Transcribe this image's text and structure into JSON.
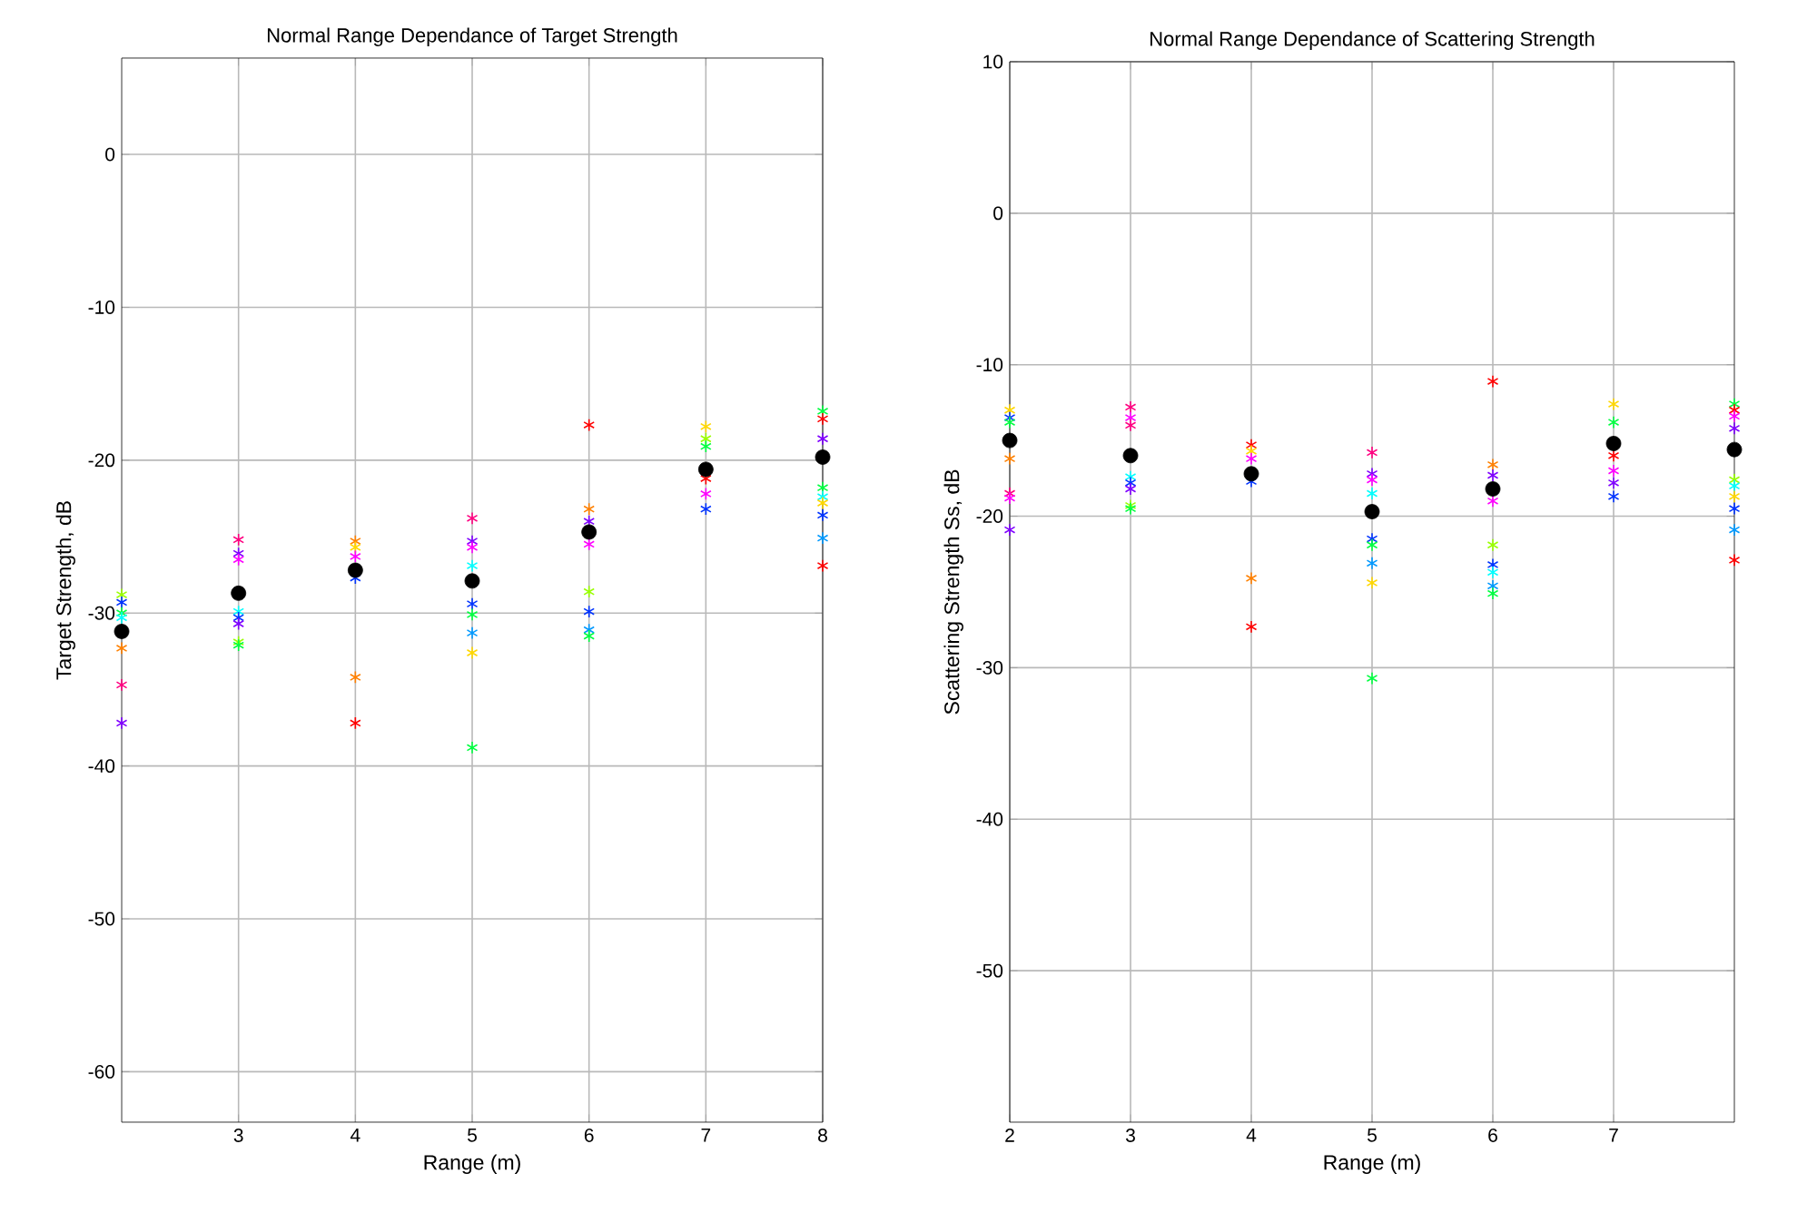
{
  "chart_data": [
    {
      "type": "scatter",
      "title": "Normal Range Dependance of Target Strength",
      "xlabel": "Range (m)",
      "ylabel": "Target Strength, dB",
      "xlim": [
        2,
        8
      ],
      "ylim": [
        -63.3,
        6.3
      ],
      "xticks": [
        3,
        4,
        5,
        6,
        7,
        8
      ],
      "yticks": [
        -60,
        -50,
        -40,
        -30,
        -20,
        -10,
        0
      ],
      "grid": true,
      "marker": "cross",
      "series": [
        {
          "x": [
            2,
            2,
            2,
            2,
            2,
            2,
            2,
            3,
            3,
            3,
            3,
            3,
            3,
            3,
            3,
            4,
            4,
            4,
            4,
            4,
            4,
            5,
            5,
            5,
            5,
            5,
            5,
            5,
            5,
            5,
            6,
            6,
            6,
            6,
            6,
            6,
            6,
            6,
            7,
            7,
            7,
            7,
            7,
            7,
            8,
            8,
            8,
            8,
            8,
            8,
            8,
            8,
            8
          ],
          "values": [
            -28.8,
            -29.3,
            -30.0,
            -30.3,
            -32.3,
            -34.7,
            -37.2,
            -25.2,
            -26.1,
            -26.5,
            -29.9,
            -30.3,
            -30.7,
            -31.9,
            -32.1,
            -25.3,
            -25.7,
            -26.3,
            -27.7,
            -34.2,
            -37.2,
            -23.8,
            -25.3,
            -25.7,
            -26.9,
            -29.4,
            -30.1,
            -31.3,
            -32.6,
            -38.8,
            -17.7,
            -23.2,
            -24.0,
            -25.5,
            -28.6,
            -29.9,
            -31.1,
            -31.5,
            -17.8,
            -18.6,
            -19.1,
            -21.2,
            -22.2,
            -23.2,
            -16.8,
            -17.3,
            -18.6,
            -21.8,
            -22.4,
            -22.8,
            -23.6,
            -25.1,
            -26.9
          ],
          "colors": [
            "#99ff00",
            "#0033ff",
            "#00ff40",
            "#00ffff",
            "#ff8000",
            "#ff0080",
            "#7f00ff",
            "#ff0080",
            "#7f00ff",
            "#ff00ff",
            "#00ffff",
            "#0033ff",
            "#7f00ff",
            "#99ff00",
            "#00ff40",
            "#ff8000",
            "#ffd700",
            "#ff00ff",
            "#0033ff",
            "#ff8000",
            "#ff0000",
            "#ff0080",
            "#7f00ff",
            "#ff00ff",
            "#00ffff",
            "#0033ff",
            "#00ff40",
            "#0099ff",
            "#ffd700",
            "#00ff40",
            "#ff0000",
            "#ff8000",
            "#7f00ff",
            "#ff00ff",
            "#99ff00",
            "#0033ff",
            "#0099ff",
            "#00ff40",
            "#ffd700",
            "#99ff00",
            "#00ff40",
            "#ff0000",
            "#ff00ff",
            "#0033ff",
            "#00ff40",
            "#ff0000",
            "#7f00ff",
            "#00ff40",
            "#00ffff",
            "#ffd700",
            "#0033ff",
            "#0099ff",
            "#ff0000"
          ]
        },
        {
          "x": [
            2,
            3,
            4,
            5,
            6,
            7,
            8
          ],
          "values": [
            -31.2,
            -28.7,
            -27.2,
            -27.9,
            -24.7,
            -20.6,
            -19.8
          ],
          "color": "#000000",
          "marker": "circle"
        }
      ]
    },
    {
      "type": "scatter",
      "title": "Normal Range Dependance of Scattering Strength",
      "xlabel": "Range (m)",
      "ylabel": "Scattering Strength Ss, dB",
      "xlim": [
        2,
        8
      ],
      "ylim": [
        -60,
        10
      ],
      "xticks": [
        2,
        3,
        4,
        5,
        6,
        7
      ],
      "yticks": [
        -50,
        -40,
        -30,
        -20,
        -10,
        0,
        10
      ],
      "grid": true,
      "marker": "cross",
      "series": [
        {
          "x": [
            2,
            2,
            2,
            2,
            2,
            2,
            2,
            3,
            3,
            3,
            3,
            3,
            3,
            3,
            3,
            4,
            4,
            4,
            4,
            4,
            4,
            5,
            5,
            5,
            5,
            5,
            5,
            5,
            5,
            5,
            6,
            6,
            6,
            6,
            6,
            6,
            6,
            6,
            6,
            7,
            7,
            7,
            7,
            7,
            7,
            8,
            8,
            8,
            8,
            8,
            8,
            8,
            8,
            8,
            8
          ],
          "values": [
            -13.0,
            -13.5,
            -13.8,
            -16.2,
            -18.5,
            -20.9,
            -18.8,
            -12.8,
            -13.5,
            -14.0,
            -17.4,
            -17.8,
            -18.2,
            -19.3,
            -19.5,
            -15.3,
            -15.7,
            -16.2,
            -17.7,
            -24.1,
            -27.3,
            -15.8,
            -17.2,
            -17.6,
            -18.5,
            -21.5,
            -21.9,
            -23.1,
            -24.4,
            -30.7,
            -11.1,
            -16.6,
            -17.3,
            -19.0,
            -21.9,
            -23.2,
            -23.7,
            -24.6,
            -25.1,
            -12.6,
            -13.8,
            -16.0,
            -17.0,
            -17.8,
            -18.7,
            -12.6,
            -13.0,
            -13.4,
            -14.2,
            -17.6,
            -18.0,
            -18.7,
            -19.5,
            -20.9,
            -22.9
          ],
          "colors": [
            "#ffd700",
            "#0033ff",
            "#00ff40",
            "#ff8000",
            "#ff0080",
            "#7f00ff",
            "#ff00ff",
            "#ff0080",
            "#ff00ff",
            "#ff0080",
            "#00ffff",
            "#0033ff",
            "#7f00ff",
            "#99ff00",
            "#00ff40",
            "#ff0000",
            "#ffd700",
            "#ff00ff",
            "#0033ff",
            "#ff8000",
            "#ff0000",
            "#ff0080",
            "#7f00ff",
            "#ff00ff",
            "#00ffff",
            "#0033ff",
            "#00ff40",
            "#0099ff",
            "#ffd700",
            "#00ff40",
            "#ff0000",
            "#ff8000",
            "#7f00ff",
            "#ff00ff",
            "#99ff00",
            "#0033ff",
            "#00ffff",
            "#0099ff",
            "#00ff40",
            "#ffd700",
            "#00ff40",
            "#ff0000",
            "#ff00ff",
            "#7f00ff",
            "#0033ff",
            "#00ff40",
            "#ff0000",
            "#ff00ff",
            "#7f00ff",
            "#99ff00",
            "#00ffff",
            "#ffd700",
            "#0033ff",
            "#0099ff",
            "#ff0000"
          ]
        },
        {
          "x": [
            2,
            3,
            4,
            5,
            6,
            7,
            8
          ],
          "values": [
            -15.0,
            -16.0,
            -17.2,
            -19.7,
            -18.2,
            -15.2,
            -15.6
          ],
          "color": "#000000",
          "marker": "circle"
        }
      ]
    }
  ]
}
